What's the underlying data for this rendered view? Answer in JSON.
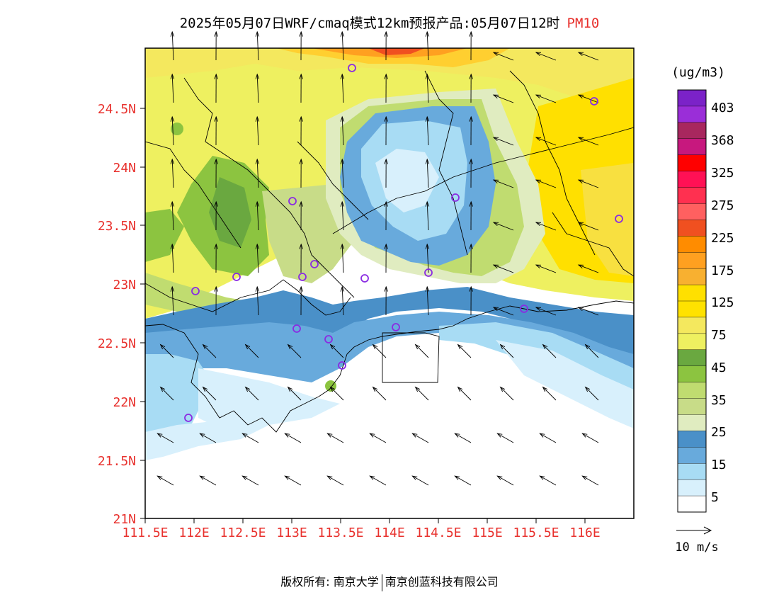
{
  "title": {
    "main": "2025年05月07日WRF/cmaq模式12km预报产品:05月07日12时",
    "pollutant": "PM10"
  },
  "axes": {
    "lat_labels": [
      "24.5N",
      "24N",
      "23.5N",
      "23N",
      "22.5N",
      "22N",
      "21.5N",
      "21N"
    ],
    "lon_labels": [
      "111.5E",
      "112E",
      "112.5E",
      "113E",
      "113.5E",
      "114E",
      "114.5E",
      "115E",
      "115.5E",
      "116E"
    ]
  },
  "legend": {
    "unit": "(ug/m3)",
    "levels": [
      "403",
      "368",
      "325",
      "275",
      "225",
      "175",
      "125",
      "75",
      "45",
      "35",
      "25",
      "15",
      "5"
    ],
    "colors": [
      "#7b22c8",
      "#9a2ed8",
      "#a8275e",
      "#c7187e",
      "#ff0000",
      "#ff1155",
      "#ff3050",
      "#ff6060",
      "#f05020",
      "#ff8c00",
      "#ffa020",
      "#f8b030",
      "#ffe000",
      "#ffe200",
      "#f4e85e",
      "#eef060",
      "#6aa840",
      "#8cc440",
      "#c0dc70",
      "#c8dc88",
      "#e0ecc0",
      "#4a90c8",
      "#68aadc",
      "#a8dcf4",
      "#d8f0fc",
      "#ffffff"
    ],
    "arrow_label": "10 m/s"
  },
  "footer": {
    "left": "版权所有: 南京大学",
    "right": "南京创蓝科技有限公司"
  }
}
